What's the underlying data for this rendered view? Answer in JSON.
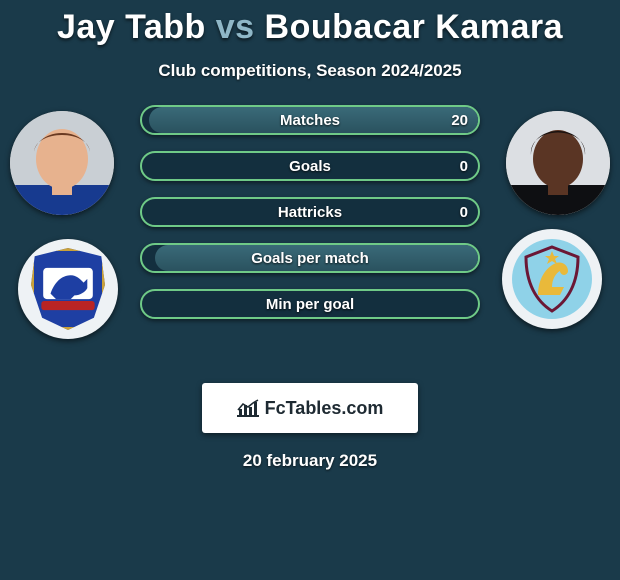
{
  "title": {
    "player1": "Jay Tabb",
    "vs": "vs",
    "player2": "Boubacar Kamara"
  },
  "subtitle": "Club competitions, Season 2024/2025",
  "date_text": "20 february 2025",
  "brand": {
    "text": "FcTables.com"
  },
  "colors": {
    "background": "#1a3a4a",
    "bar_border": "#6fca87",
    "bar_fill_top": "#3a6a78",
    "bar_fill_bottom": "#2a525f",
    "title_accent": "#8fb7c7",
    "text": "#ffffff",
    "brand_bg": "#ffffff",
    "brand_text": "#1e2a32"
  },
  "left_club": {
    "name": "Ipswich Town",
    "crest": {
      "shape": "shield",
      "bg": "#1e3fa3",
      "border": "#c9a13a",
      "inner_bg": "#ffffff",
      "inner_motif": "horse",
      "motif_color": "#1e3fa3",
      "ribbon_color": "#b92424"
    }
  },
  "right_club": {
    "name": "Aston Villa",
    "crest": {
      "shape": "round",
      "bg": "#8fd2e8",
      "border": "#6b1735",
      "motif": "lion",
      "motif_color": "#e9b93a",
      "star_color": "#e9b93a"
    }
  },
  "player1_portrait": {
    "skin": "#e7b28e",
    "hair": "#6a3a22",
    "shirt": "#173a8f",
    "bg": "#c9cfd4"
  },
  "player2_portrait": {
    "skin": "#5a3524",
    "hair": "#1a1210",
    "shirt": "#0e0f12",
    "bg": "#dcdfe3"
  },
  "stats": [
    {
      "label": "Matches",
      "left_val": "",
      "right_val": "20",
      "left_pct": 0,
      "right_pct": 98
    },
    {
      "label": "Goals",
      "left_val": "",
      "right_val": "0",
      "left_pct": 0,
      "right_pct": 0
    },
    {
      "label": "Hattricks",
      "left_val": "",
      "right_val": "0",
      "left_pct": 0,
      "right_pct": 0
    },
    {
      "label": "Goals per match",
      "left_val": "",
      "right_val": "",
      "left_pct": 0,
      "right_pct": 96
    },
    {
      "label": "Min per goal",
      "left_val": "",
      "right_val": "",
      "left_pct": 0,
      "right_pct": 0
    }
  ]
}
